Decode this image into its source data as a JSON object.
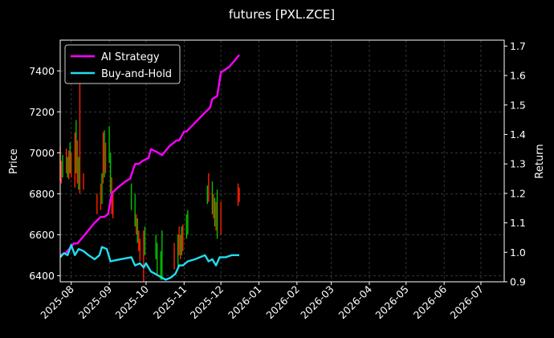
{
  "chart_data": {
    "type": "line",
    "title": "futures [PXL.ZCE]",
    "ylabel": "Price",
    "y2label": "Return",
    "ylim": [
      6370,
      7550
    ],
    "y2lim": [
      0.9,
      1.72
    ],
    "yticks": [
      6400,
      6600,
      6800,
      7000,
      7200,
      7400
    ],
    "y2ticks": [
      0.9,
      1.0,
      1.1,
      1.2,
      1.3,
      1.4,
      1.5,
      1.6,
      1.7
    ],
    "xlim": [
      "2025-07-23",
      "2026-07-20"
    ],
    "xticks": [
      {
        "date": "2025-08-01",
        "label": "2025-08"
      },
      {
        "date": "2025-09-01",
        "label": "2025-09"
      },
      {
        "date": "2025-10-01",
        "label": "2025-10"
      },
      {
        "date": "2025-11-01",
        "label": "2025-11"
      },
      {
        "date": "2025-12-01",
        "label": "2025-12"
      },
      {
        "date": "2026-01-01",
        "label": "2026-01"
      },
      {
        "date": "2026-02-01",
        "label": "2026-02"
      },
      {
        "date": "2026-03-01",
        "label": "2026-03"
      },
      {
        "date": "2026-04-01",
        "label": "2026-04"
      },
      {
        "date": "2026-05-01",
        "label": "2026-05"
      },
      {
        "date": "2026-06-01",
        "label": "2026-06"
      },
      {
        "date": "2026-07-01",
        "label": "2026-07"
      }
    ],
    "grid": true,
    "legend_position": "top-left",
    "colors": {
      "background": "#000000",
      "up": "#00c000",
      "down": "#ff2000",
      "grid": "#555555"
    },
    "candles": [
      {
        "date": "2025-07-23",
        "low": 6860,
        "high": 7030,
        "color": "down"
      },
      {
        "date": "2025-07-24",
        "low": 6850,
        "high": 6960,
        "color": "down"
      },
      {
        "date": "2025-07-25",
        "low": 6880,
        "high": 6990,
        "color": "up"
      },
      {
        "date": "2025-07-28",
        "low": 6900,
        "high": 7020,
        "color": "down"
      },
      {
        "date": "2025-07-29",
        "low": 6880,
        "high": 6980,
        "color": "up"
      },
      {
        "date": "2025-07-30",
        "low": 6870,
        "high": 7010,
        "color": "down"
      },
      {
        "date": "2025-07-31",
        "low": 6900,
        "high": 7050,
        "color": "up"
      },
      {
        "date": "2025-08-01",
        "low": 6880,
        "high": 7000,
        "color": "down"
      },
      {
        "date": "2025-08-04",
        "low": 6830,
        "high": 7100,
        "color": "down"
      },
      {
        "date": "2025-08-05",
        "low": 6900,
        "high": 7160,
        "color": "up"
      },
      {
        "date": "2025-08-06",
        "low": 6850,
        "high": 7060,
        "color": "down"
      },
      {
        "date": "2025-08-07",
        "low": 6820,
        "high": 6980,
        "color": "up"
      },
      {
        "date": "2025-08-08",
        "low": 6800,
        "high": 7340,
        "color": "down"
      },
      {
        "date": "2025-08-11",
        "low": 6820,
        "high": 6900,
        "color": "down"
      },
      {
        "date": "2025-08-22",
        "low": 6700,
        "high": 6800,
        "color": "down"
      },
      {
        "date": "2025-08-25",
        "low": 6720,
        "high": 6850,
        "color": "down"
      },
      {
        "date": "2025-08-26",
        "low": 6750,
        "high": 6900,
        "color": "up"
      },
      {
        "date": "2025-08-27",
        "low": 6850,
        "high": 7100,
        "color": "down"
      },
      {
        "date": "2025-08-28",
        "low": 6880,
        "high": 7110,
        "color": "up"
      },
      {
        "date": "2025-08-29",
        "low": 6900,
        "high": 7050,
        "color": "down"
      },
      {
        "date": "2025-09-01",
        "low": 6950,
        "high": 7130,
        "color": "up"
      },
      {
        "date": "2025-09-02",
        "low": 6800,
        "high": 7000,
        "color": "up"
      },
      {
        "date": "2025-09-03",
        "low": 6700,
        "high": 6880,
        "color": "down"
      },
      {
        "date": "2025-09-04",
        "low": 6680,
        "high": 6800,
        "color": "down"
      },
      {
        "date": "2025-09-19",
        "low": 6720,
        "high": 6850,
        "color": "up"
      },
      {
        "date": "2025-09-22",
        "low": 6640,
        "high": 6800,
        "color": "up"
      },
      {
        "date": "2025-09-23",
        "low": 6600,
        "high": 6700,
        "color": "down"
      },
      {
        "date": "2025-09-24",
        "low": 6560,
        "high": 6680,
        "color": "up"
      },
      {
        "date": "2025-09-25",
        "low": 6520,
        "high": 6620,
        "color": "down"
      },
      {
        "date": "2025-09-26",
        "low": 6470,
        "high": 6580,
        "color": "down"
      },
      {
        "date": "2025-09-29",
        "low": 6330,
        "high": 6620,
        "color": "down"
      },
      {
        "date": "2025-09-30",
        "low": 6500,
        "high": 6640,
        "color": "up"
      },
      {
        "date": "2025-10-09",
        "low": 6480,
        "high": 6600,
        "color": "up"
      },
      {
        "date": "2025-10-10",
        "low": 6400,
        "high": 6560,
        "color": "up"
      },
      {
        "date": "2025-10-13",
        "low": 6380,
        "high": 6520,
        "color": "up"
      },
      {
        "date": "2025-10-14",
        "low": 6380,
        "high": 6620,
        "color": "up"
      },
      {
        "date": "2025-10-24",
        "low": 6430,
        "high": 6560,
        "color": "down"
      },
      {
        "date": "2025-10-27",
        "low": 6440,
        "high": 6600,
        "color": "up"
      },
      {
        "date": "2025-10-28",
        "low": 6500,
        "high": 6640,
        "color": "down"
      },
      {
        "date": "2025-10-29",
        "low": 6480,
        "high": 6600,
        "color": "down"
      },
      {
        "date": "2025-10-30",
        "low": 6500,
        "high": 6640,
        "color": "up"
      },
      {
        "date": "2025-10-31",
        "low": 6520,
        "high": 6650,
        "color": "down"
      },
      {
        "date": "2025-11-03",
        "low": 6580,
        "high": 6700,
        "color": "up"
      },
      {
        "date": "2025-11-04",
        "low": 6600,
        "high": 6720,
        "color": "up"
      },
      {
        "date": "2025-11-20",
        "low": 6750,
        "high": 6840,
        "color": "up"
      },
      {
        "date": "2025-11-21",
        "low": 6760,
        "high": 6900,
        "color": "down"
      },
      {
        "date": "2025-11-24",
        "low": 6700,
        "high": 6860,
        "color": "up"
      },
      {
        "date": "2025-11-25",
        "low": 6680,
        "high": 6800,
        "color": "down"
      },
      {
        "date": "2025-11-26",
        "low": 6640,
        "high": 6780,
        "color": "up"
      },
      {
        "date": "2025-11-27",
        "low": 6620,
        "high": 6760,
        "color": "down"
      },
      {
        "date": "2025-11-28",
        "low": 6580,
        "high": 6820,
        "color": "up"
      },
      {
        "date": "2025-12-01",
        "low": 6600,
        "high": 6760,
        "color": "down"
      },
      {
        "date": "2025-12-15",
        "low": 6740,
        "high": 6850,
        "color": "down"
      },
      {
        "date": "2025-12-16",
        "low": 6760,
        "high": 6830,
        "color": "down"
      }
    ],
    "series": [
      {
        "name": "AI Strategy",
        "axis": "right",
        "color": "#ff00ff",
        "points": [
          [
            "2025-07-23",
            0.99
          ],
          [
            "2025-07-28",
            1.0
          ],
          [
            "2025-08-01",
            1.02
          ],
          [
            "2025-08-03",
            1.03
          ],
          [
            "2025-08-06",
            1.03
          ],
          [
            "2025-08-12",
            1.06
          ],
          [
            "2025-08-20",
            1.1
          ],
          [
            "2025-08-25",
            1.12
          ],
          [
            "2025-08-28",
            1.12
          ],
          [
            "2025-08-31",
            1.13
          ],
          [
            "2025-09-03",
            1.2
          ],
          [
            "2025-09-08",
            1.22
          ],
          [
            "2025-09-14",
            1.24
          ],
          [
            "2025-09-18",
            1.25
          ],
          [
            "2025-09-22",
            1.3
          ],
          [
            "2025-09-25",
            1.3
          ],
          [
            "2025-09-28",
            1.31
          ],
          [
            "2025-10-03",
            1.32
          ],
          [
            "2025-10-05",
            1.35
          ],
          [
            "2025-10-10",
            1.34
          ],
          [
            "2025-10-14",
            1.33
          ],
          [
            "2025-10-20",
            1.36
          ],
          [
            "2025-10-26",
            1.38
          ],
          [
            "2025-10-28",
            1.38
          ],
          [
            "2025-11-01",
            1.41
          ],
          [
            "2025-11-03",
            1.41
          ],
          [
            "2025-11-10",
            1.44
          ],
          [
            "2025-11-17",
            1.47
          ],
          [
            "2025-11-22",
            1.49
          ],
          [
            "2025-11-24",
            1.52
          ],
          [
            "2025-11-28",
            1.53
          ],
          [
            "2025-12-01",
            1.61
          ],
          [
            "2025-12-08",
            1.63
          ],
          [
            "2025-12-14",
            1.66
          ],
          [
            "2025-12-16",
            1.67
          ]
        ]
      },
      {
        "name": "Buy-and-Hold",
        "axis": "left",
        "color": "#22ddee",
        "points": [
          [
            "2025-07-23",
            6490
          ],
          [
            "2025-07-26",
            6510
          ],
          [
            "2025-07-29",
            6500
          ],
          [
            "2025-08-01",
            6550
          ],
          [
            "2025-08-04",
            6500
          ],
          [
            "2025-08-07",
            6530
          ],
          [
            "2025-08-11",
            6520
          ],
          [
            "2025-08-15",
            6500
          ],
          [
            "2025-08-20",
            6480
          ],
          [
            "2025-08-24",
            6500
          ],
          [
            "2025-08-26",
            6540
          ],
          [
            "2025-08-30",
            6530
          ],
          [
            "2025-09-02",
            6470
          ],
          [
            "2025-09-10",
            6480
          ],
          [
            "2025-09-19",
            6490
          ],
          [
            "2025-09-22",
            6450
          ],
          [
            "2025-09-26",
            6460
          ],
          [
            "2025-09-29",
            6440
          ],
          [
            "2025-10-01",
            6460
          ],
          [
            "2025-10-05",
            6420
          ],
          [
            "2025-10-11",
            6400
          ],
          [
            "2025-10-17",
            6380
          ],
          [
            "2025-10-21",
            6390
          ],
          [
            "2025-10-25",
            6410
          ],
          [
            "2025-10-28",
            6450
          ],
          [
            "2025-10-31",
            6450
          ],
          [
            "2025-11-04",
            6470
          ],
          [
            "2025-11-10",
            6480
          ],
          [
            "2025-11-18",
            6500
          ],
          [
            "2025-11-21",
            6470
          ],
          [
            "2025-11-24",
            6480
          ],
          [
            "2025-11-27",
            6450
          ],
          [
            "2025-11-30",
            6490
          ],
          [
            "2025-12-05",
            6490
          ],
          [
            "2025-12-10",
            6500
          ],
          [
            "2025-12-14",
            6500
          ],
          [
            "2025-12-16",
            6500
          ]
        ]
      }
    ]
  }
}
